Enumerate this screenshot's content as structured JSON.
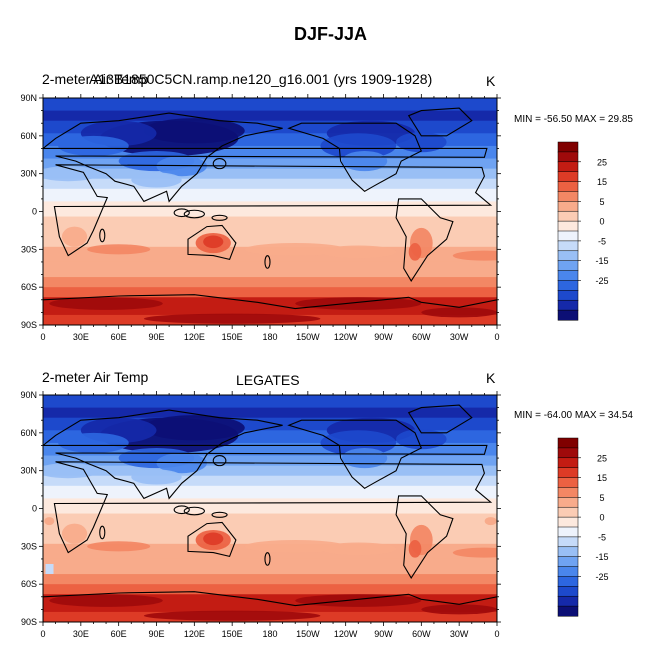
{
  "figure": {
    "title": "DJF-JJA"
  },
  "colorbar": {
    "colors": [
      "#0c0f75",
      "#1529a9",
      "#1d49cc",
      "#2d66e0",
      "#4a86ec",
      "#6fa3f2",
      "#99bff5",
      "#c6dbf9",
      "#eef3fc",
      "#fde9de",
      "#fbccb4",
      "#f8ab8b",
      "#f38764",
      "#ec6142",
      "#dd3b26",
      "#c31c13",
      "#9f0a0b",
      "#800000"
    ],
    "labels": [
      "-25",
      "-15",
      "-5",
      "0",
      "5",
      "15",
      "25"
    ]
  },
  "lon_ticks": [
    "0",
    "30E",
    "60E",
    "90E",
    "120E",
    "150E",
    "180",
    "150W",
    "120W",
    "90W",
    "60W",
    "30W",
    "0"
  ],
  "lat_ticks": [
    "90N",
    "60N",
    "30N",
    "0",
    "30S",
    "60S",
    "90S"
  ],
  "panels": [
    {
      "left_label": "2-meter Air Temp",
      "center_label": "A13B1850C5CN.ramp.ne120_g16.001 (yrs 1909-1928)",
      "units_label": "K",
      "stats": "MIN = -56.50 MAX =  29.85"
    },
    {
      "left_label": "2-meter Air Temp",
      "center_label": "LEGATES",
      "units_label": "K",
      "stats": "MIN = -64.00 MAX =  34.54"
    }
  ]
}
